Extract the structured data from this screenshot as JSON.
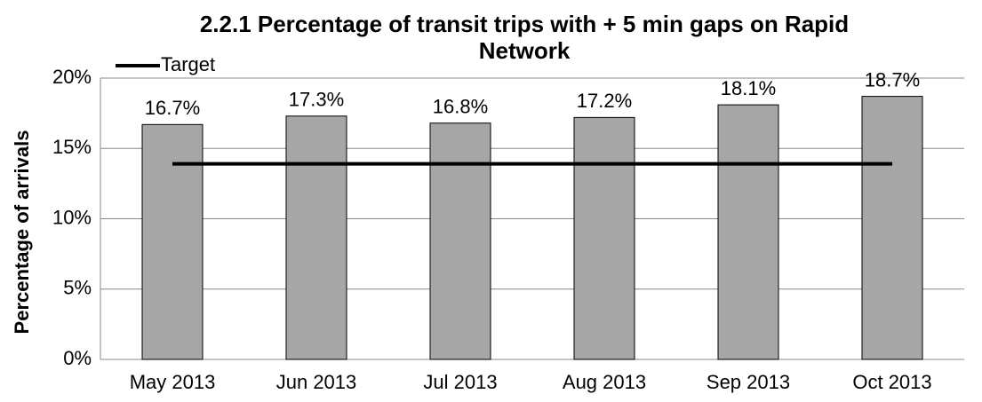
{
  "chart_data": {
    "type": "bar",
    "title": "2.2.1 Percentage of transit trips with + 5 min gaps on Rapid Network",
    "ylabel": "Percentage of arrivals",
    "categories": [
      "May 2013",
      "Jun 2013",
      "Jul 2013",
      "Aug 2013",
      "Sep 2013",
      "Oct 2013"
    ],
    "series": [
      {
        "type": "bar",
        "color": "#a6a6a6",
        "values": [
          16.7,
          17.3,
          16.8,
          17.2,
          18.1,
          18.7
        ],
        "value_labels": [
          "16.7%",
          "17.3%",
          "16.8%",
          "17.2%",
          "18.1%",
          "18.7%"
        ]
      },
      {
        "type": "line",
        "name": "Target",
        "color": "#000000",
        "values": [
          13.9,
          13.9,
          13.9,
          13.9,
          13.9,
          13.9
        ]
      }
    ],
    "ylim": [
      0,
      20
    ],
    "yticks": [
      {
        "value": 0,
        "label": "0%"
      },
      {
        "value": 5,
        "label": "5%"
      },
      {
        "value": 10,
        "label": "10%"
      },
      {
        "value": 15,
        "label": "15%"
      },
      {
        "value": 20,
        "label": "20%"
      }
    ],
    "grid": true,
    "legend": "top-left"
  }
}
